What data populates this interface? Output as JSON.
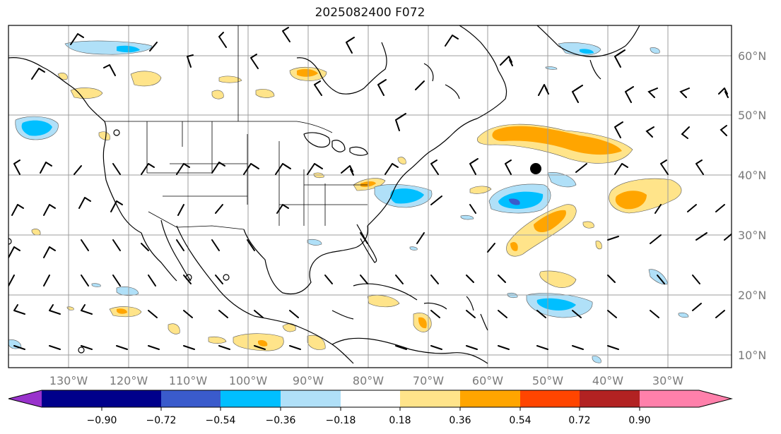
{
  "title": "2025082400 F072",
  "map": {
    "lon_range": [
      -141.5,
      -20
    ],
    "lat_range": [
      7.5,
      65
    ],
    "grid": true,
    "lon_labels": [
      "130°W",
      "120°W",
      "110°W",
      "100°W",
      "90°W",
      "80°W",
      "70°W",
      "60°W",
      "50°W",
      "40°W",
      "30°W"
    ],
    "lat_labels": [
      "60°N",
      "50°N",
      "40°N",
      "30°N",
      "20°N",
      "10°N"
    ],
    "storm_marker": {
      "lon": -51.5,
      "lat": 41
    }
  },
  "colorbar": {
    "ticks": [
      "−0.90",
      "−0.72",
      "−0.54",
      "−0.36",
      "−0.18",
      "0.18",
      "0.36",
      "0.54",
      "0.72",
      "0.90"
    ],
    "colors": [
      "#9932cc",
      "#00008b",
      "#3a5bcc",
      "#00bfff",
      "#b0e0f8",
      "#ffffff",
      "#ffe48a",
      "#ffa500",
      "#ff4500",
      "#b22222",
      "#ff80ab"
    ],
    "extend": "both"
  },
  "colors": {
    "grid": "#9e9e9e",
    "axis_label": "#7a7a7a",
    "coast": "#000000"
  }
}
